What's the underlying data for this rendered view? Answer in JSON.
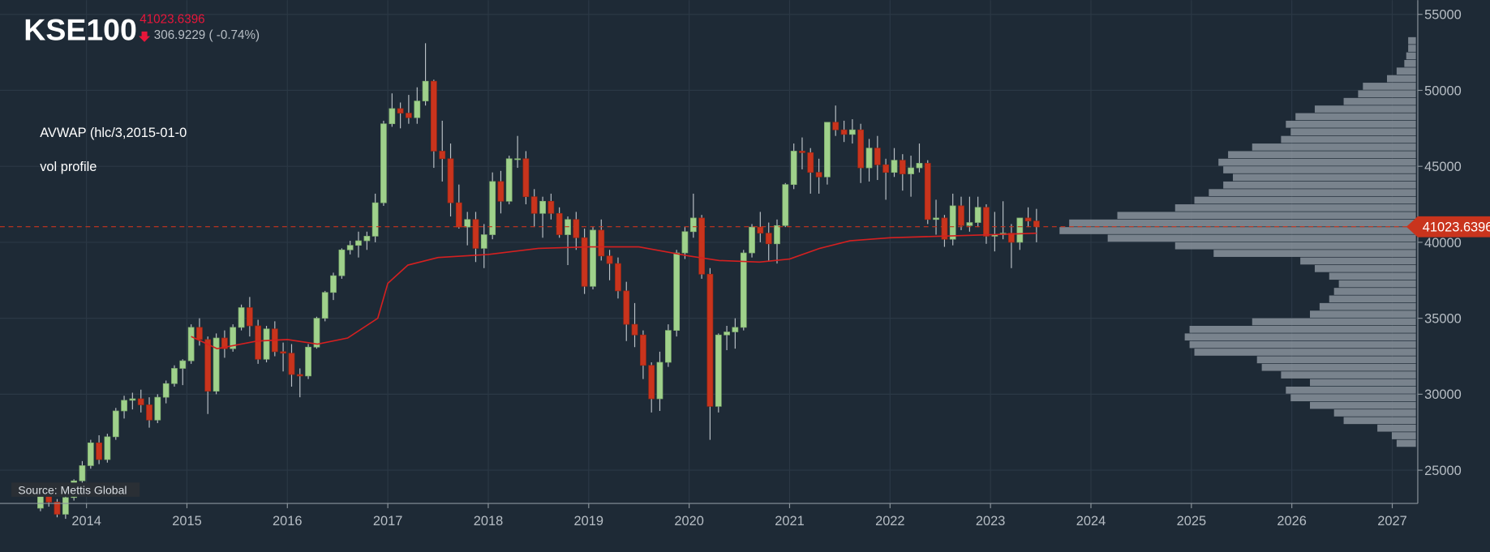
{
  "chart_data": {
    "type": "candlestick",
    "title": "KSE100",
    "last_price": "41023.6396",
    "change": "306.9229 ( -0.74%)",
    "source": "Source: Mettis Global",
    "xlim": [
      2013.139,
      2027.254
    ],
    "xticks": [
      2014,
      2015,
      2016,
      2017,
      2018,
      2019,
      2020,
      2021,
      2022,
      2023,
      2024,
      2025,
      2026,
      2027
    ],
    "ylim": [
      22812.5,
      55937.5
    ],
    "yticks": [
      25000,
      30000,
      35000,
      40000,
      45000,
      50000,
      55000
    ],
    "grid": true,
    "up_color": "#9fd18b",
    "down_color": "#c9341d",
    "x": [
      2013.542,
      2013.625,
      2013.708,
      2013.792,
      2013.875,
      2013.958,
      2014.042,
      2014.125,
      2014.208,
      2014.292,
      2014.375,
      2014.458,
      2014.542,
      2014.625,
      2014.708,
      2014.792,
      2014.875,
      2014.958,
      2015.042,
      2015.125,
      2015.208,
      2015.292,
      2015.375,
      2015.458,
      2015.542,
      2015.625,
      2015.708,
      2015.792,
      2015.875,
      2015.958,
      2016.042,
      2016.125,
      2016.208,
      2016.292,
      2016.375,
      2016.458,
      2016.542,
      2016.625,
      2016.708,
      2016.792,
      2016.875,
      2016.958,
      2017.042,
      2017.125,
      2017.208,
      2017.292,
      2017.375,
      2017.458,
      2017.542,
      2017.625,
      2017.708,
      2017.792,
      2017.875,
      2017.958,
      2018.042,
      2018.125,
      2018.208,
      2018.292,
      2018.375,
      2018.458,
      2018.542,
      2018.625,
      2018.708,
      2018.792,
      2018.875,
      2018.958,
      2019.042,
      2019.125,
      2019.208,
      2019.292,
      2019.375,
      2019.458,
      2019.542,
      2019.625,
      2019.708,
      2019.792,
      2019.875,
      2019.958,
      2020.042,
      2020.125,
      2020.208,
      2020.292,
      2020.375,
      2020.458,
      2020.542,
      2020.625,
      2020.708,
      2020.792,
      2020.875,
      2020.958,
      2021.042,
      2021.125,
      2021.208,
      2021.292,
      2021.375,
      2021.458,
      2021.542,
      2021.625,
      2021.708,
      2021.792,
      2021.875,
      2021.958,
      2022.042,
      2022.125,
      2022.208,
      2022.292,
      2022.375,
      2022.458,
      2022.542,
      2022.625,
      2022.708,
      2022.792,
      2022.875,
      2022.958,
      2023.042,
      2023.125,
      2023.208,
      2023.292,
      2023.375,
      2023.458
    ],
    "open": [
      22500,
      23400,
      22900,
      22100,
      23200,
      24300,
      25300,
      26800,
      25700,
      27200,
      28900,
      29600,
      29700,
      29300,
      28300,
      29800,
      30700,
      31700,
      32200,
      34400,
      33600,
      30200,
      33700,
      33000,
      34400,
      35700,
      34500,
      32300,
      34300,
      32800,
      32700,
      31300,
      31200,
      33100,
      35000,
      36700,
      37800,
      39500,
      39800,
      40100,
      40400,
      42600,
      47800,
      48800,
      48500,
      48200,
      49300,
      50600,
      46000,
      45500,
      42600,
      41000,
      41500,
      39600,
      40500,
      44000,
      42700,
      45500,
      45500,
      43000,
      41900,
      42700,
      41900,
      40500,
      41500,
      40300,
      37100,
      40800,
      39100,
      38600,
      36800,
      34600,
      33900,
      31900,
      29700,
      32100,
      34200,
      39300,
      40700,
      41600,
      37900,
      29200,
      33900,
      34100,
      34400,
      39300,
      41000,
      40600,
      39900,
      41100,
      43800,
      46000,
      45900,
      44600,
      44300,
      47900,
      47400,
      47100,
      47400,
      44900,
      46200,
      45100,
      44600,
      45400,
      44500,
      44900,
      45200,
      41500,
      41600,
      40200,
      42400,
      41100,
      41300,
      42300,
      40400,
      40500,
      40600,
      40000,
      41600,
      41400
    ],
    "high": [
      23700,
      23800,
      23100,
      23300,
      24400,
      25600,
      27000,
      27300,
      27400,
      29100,
      29900,
      30100,
      30300,
      29800,
      30000,
      30900,
      31900,
      32300,
      34600,
      35000,
      33800,
      34000,
      34200,
      34600,
      35900,
      36400,
      34900,
      34500,
      34800,
      33400,
      33300,
      31700,
      33300,
      35100,
      36800,
      38000,
      39600,
      40100,
      40700,
      40700,
      43200,
      48000,
      49800,
      49200,
      49700,
      50200,
      53100,
      50700,
      48000,
      46500,
      43800,
      42000,
      42000,
      41200,
      44600,
      44700,
      45700,
      47000,
      46000,
      43500,
      43000,
      43200,
      42300,
      41700,
      42000,
      40900,
      41000,
      41500,
      39500,
      39000,
      37400,
      36000,
      34200,
      32100,
      32800,
      34600,
      39500,
      41000,
      43200,
      41800,
      38300,
      34000,
      34500,
      35000,
      39500,
      41200,
      42000,
      41300,
      41500,
      43900,
      46500,
      46900,
      46200,
      45500,
      47900,
      49000,
      48000,
      48100,
      47800,
      46800,
      47000,
      45500,
      46200,
      45800,
      45700,
      46500,
      45400,
      42800,
      41800,
      43200,
      43000,
      43000,
      43000,
      42500,
      42000,
      42700,
      41200,
      41600,
      42300,
      42200
    ],
    "low": [
      22300,
      22600,
      21900,
      21800,
      23000,
      24100,
      25100,
      25400,
      25500,
      27000,
      28400,
      29000,
      28800,
      27800,
      28100,
      29400,
      30500,
      30600,
      32000,
      33200,
      28700,
      30000,
      32400,
      32800,
      34200,
      33800,
      32000,
      32100,
      32500,
      31500,
      30500,
      29800,
      31000,
      33000,
      34800,
      36200,
      37600,
      39200,
      39000,
      39500,
      40000,
      42400,
      47600,
      47500,
      47800,
      47800,
      49000,
      44900,
      44000,
      41700,
      40900,
      39800,
      38700,
      38300,
      40200,
      41900,
      42500,
      44900,
      42500,
      41000,
      40300,
      41500,
      40300,
      38500,
      39500,
      36600,
      36900,
      38800,
      37500,
      36300,
      33500,
      33100,
      31000,
      28800,
      28900,
      31800,
      33800,
      38900,
      40300,
      37600,
      27000,
      28800,
      32900,
      33000,
      34200,
      39000,
      40000,
      38800,
      38600,
      41000,
      43500,
      44800,
      43200,
      43200,
      43800,
      47000,
      46600,
      46500,
      43900,
      44000,
      44100,
      42800,
      44300,
      43400,
      43000,
      44600,
      41200,
      40500,
      39700,
      39800,
      40800,
      40700,
      41000,
      39900,
      39400,
      40200,
      38300,
      39500,
      41000,
      40000
    ],
    "close": [
      23400,
      22900,
      22100,
      23200,
      24300,
      25300,
      26800,
      25700,
      27200,
      28900,
      29600,
      29700,
      29300,
      28300,
      29800,
      30700,
      31700,
      32200,
      34400,
      33600,
      30200,
      33700,
      33000,
      34400,
      35700,
      34500,
      32300,
      34300,
      32800,
      32700,
      31300,
      31200,
      33100,
      35000,
      36700,
      37800,
      39500,
      39800,
      40100,
      40400,
      42600,
      47800,
      48800,
      48500,
      48200,
      49300,
      50600,
      46000,
      45500,
      42600,
      41000,
      41500,
      39600,
      40500,
      44000,
      42700,
      45500,
      45500,
      43000,
      41900,
      42700,
      41900,
      40500,
      41500,
      40300,
      37100,
      40800,
      39100,
      38600,
      36800,
      34600,
      33900,
      31900,
      29700,
      32100,
      34200,
      39300,
      40700,
      41600,
      37900,
      29200,
      33900,
      34100,
      34400,
      39300,
      41000,
      40600,
      39900,
      41100,
      43800,
      46000,
      45900,
      44600,
      44300,
      47900,
      47400,
      47100,
      47400,
      44900,
      46200,
      45100,
      44600,
      45400,
      44500,
      44900,
      45200,
      41500,
      41600,
      40200,
      42400,
      41100,
      41300,
      42300,
      40400,
      40500,
      40600,
      40000,
      41600,
      41400,
      41023.6396
    ],
    "avwap": {
      "name": "AVWAP (hlc/3,2015-01-0",
      "color": "#d42020",
      "x": [
        2015.042,
        2015.3,
        2015.7,
        2016.0,
        2016.3,
        2016.6,
        2016.9,
        2017.0,
        2017.2,
        2017.5,
        2018.0,
        2018.5,
        2019.0,
        2019.5,
        2020.0,
        2020.3,
        2020.7,
        2021.0,
        2021.3,
        2021.6,
        2022.0,
        2022.5,
        2023.0,
        2023.458
      ],
      "values": [
        33800,
        33000,
        33500,
        33600,
        33300,
        33700,
        35000,
        37300,
        38500,
        39000,
        39200,
        39600,
        39700,
        39700,
        39100,
        38800,
        38700,
        38900,
        39600,
        40100,
        40300,
        40400,
        40500,
        40600
      ]
    },
    "vol_profile": {
      "name": "vol profile",
      "color": "#8a939c",
      "step": 500,
      "prices": [
        26500,
        27000,
        27500,
        28000,
        28500,
        29000,
        29500,
        30000,
        30500,
        31000,
        31500,
        32000,
        32500,
        33000,
        33500,
        34000,
        34500,
        35000,
        35500,
        36000,
        36500,
        37000,
        37500,
        38000,
        38500,
        39000,
        39500,
        40000,
        40500,
        41000,
        41500,
        42000,
        42500,
        43000,
        43500,
        44000,
        44500,
        45000,
        45500,
        46000,
        46500,
        47000,
        47500,
        48000,
        48500,
        49000,
        49500,
        50000,
        50500,
        51000,
        51500,
        52000,
        52500,
        53000
      ],
      "volumes": [
        20,
        25,
        40,
        75,
        85,
        110,
        130,
        135,
        110,
        140,
        160,
        165,
        230,
        235,
        240,
        235,
        170,
        110,
        100,
        90,
        85,
        80,
        90,
        105,
        120,
        210,
        250,
        320,
        370,
        360,
        310,
        250,
        230,
        215,
        200,
        190,
        200,
        205,
        195,
        170,
        140,
        130,
        135,
        125,
        105,
        75,
        60,
        55,
        30,
        20,
        12,
        10,
        8,
        8
      ]
    }
  }
}
